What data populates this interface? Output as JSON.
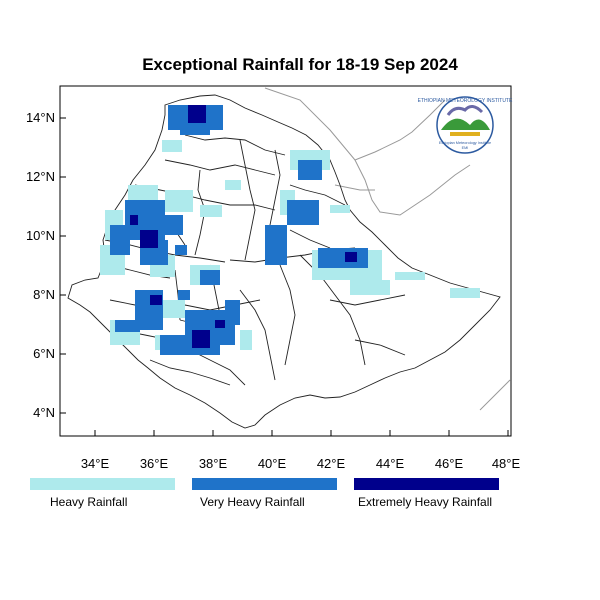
{
  "title": "Exceptional Rainfall for 18-19 Sep 2024",
  "lat_ticks": [
    "14°N",
    "12°N",
    "10°N",
    "8°N",
    "6°N",
    "4°N"
  ],
  "lon_ticks": [
    "34°E",
    "36°E",
    "38°E",
    "40°E",
    "42°E",
    "44°E",
    "46°E",
    "48°E"
  ],
  "legend": [
    {
      "label": "Heavy Rainfall",
      "color": "#aeeaec"
    },
    {
      "label": "Very Heavy Rainfall",
      "color": "#1f73c9"
    },
    {
      "label": "Extremely Heavy Rainfall",
      "color": "#00008c"
    }
  ],
  "logo": {
    "top_text": "ETHIOPIAN METEOROLOGY INSTITUTE",
    "bottom_text": "Ethiopian Meteorology Institute",
    "sub": "EMI"
  }
}
